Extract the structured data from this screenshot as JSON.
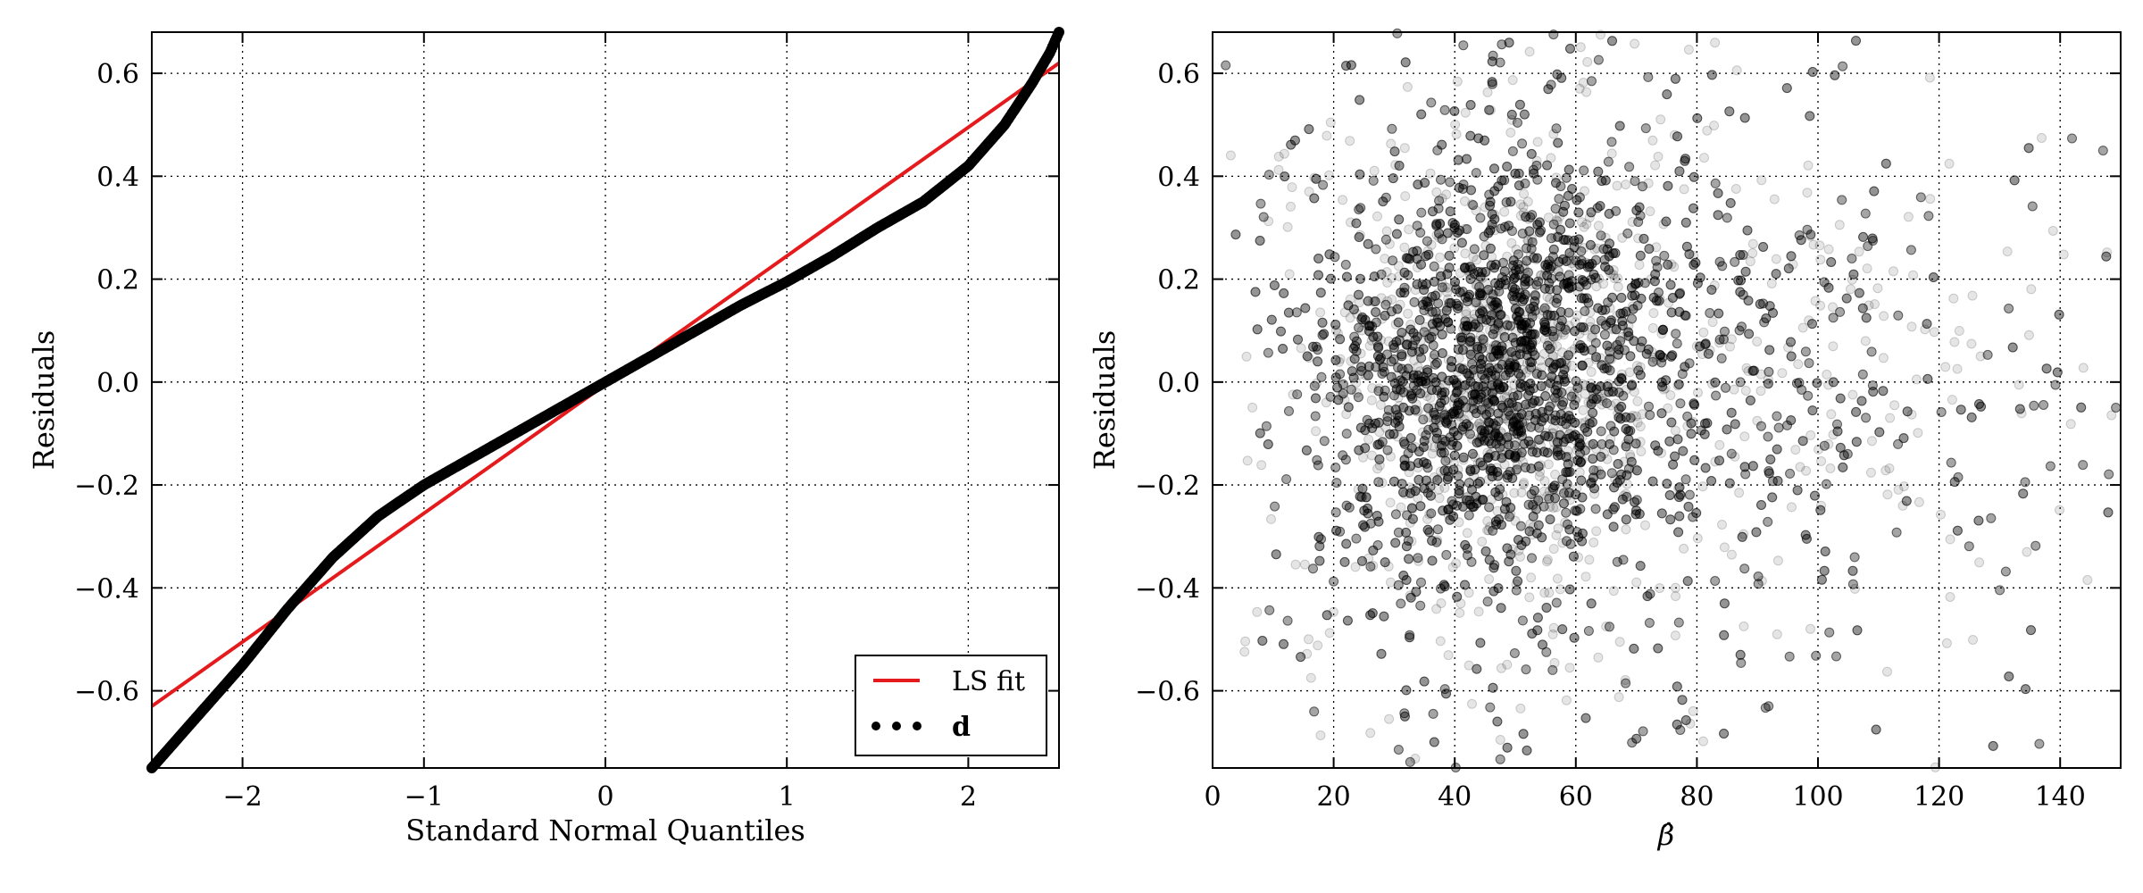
{
  "chart_data": [
    {
      "type": "line",
      "title": "",
      "xlabel": "Standard Normal Quantiles",
      "ylabel": "Residuals",
      "xlim": [
        -2.5,
        2.5
      ],
      "ylim": [
        -0.75,
        0.68
      ],
      "xticks": [
        -2,
        -1,
        0,
        1,
        2
      ],
      "xtick_labels": [
        "−2",
        "−1",
        "0",
        "1",
        "2"
      ],
      "yticks": [
        -0.6,
        -0.4,
        -0.2,
        0.0,
        0.2,
        0.4,
        0.6
      ],
      "ytick_labels": [
        "−0.6",
        "−0.4",
        "−0.2",
        "0.0",
        "0.2",
        "0.4",
        "0.6"
      ],
      "grid": true,
      "legend_position": "bottom-right",
      "series": [
        {
          "name": "LS fit",
          "style": "line",
          "color": "#e41a1c",
          "x": [
            -2.5,
            2.5
          ],
          "y": [
            -0.63,
            0.62
          ]
        },
        {
          "name": "d",
          "style": "points",
          "color": "#000000",
          "x": [
            -2.5,
            -2.25,
            -2.0,
            -1.75,
            -1.5,
            -1.25,
            -1.0,
            -0.75,
            -0.5,
            -0.25,
            0.0,
            0.25,
            0.5,
            0.75,
            1.0,
            1.25,
            1.5,
            1.75,
            2.0,
            2.2,
            2.35,
            2.45,
            2.5
          ],
          "y": [
            -0.75,
            -0.65,
            -0.55,
            -0.44,
            -0.34,
            -0.26,
            -0.2,
            -0.15,
            -0.1,
            -0.05,
            0.0,
            0.05,
            0.1,
            0.15,
            0.195,
            0.245,
            0.3,
            0.35,
            0.42,
            0.5,
            0.58,
            0.64,
            0.68
          ]
        }
      ]
    },
    {
      "type": "scatter",
      "title": "",
      "xlabel": "β̂",
      "ylabel": "Residuals",
      "xlim": [
        0,
        150
      ],
      "ylim": [
        -0.75,
        0.68
      ],
      "xticks": [
        0,
        20,
        40,
        60,
        80,
        100,
        120,
        140
      ],
      "xtick_labels": [
        "0",
        "20",
        "40",
        "60",
        "80",
        "100",
        "120",
        "140"
      ],
      "yticks": [
        -0.6,
        -0.4,
        -0.2,
        0.0,
        0.2,
        0.4,
        0.6
      ],
      "ytick_labels": [
        "−0.6",
        "−0.4",
        "−0.2",
        "0.0",
        "0.2",
        "0.4",
        "0.6"
      ],
      "grid": true,
      "point_color": "#000000",
      "point_alpha": 0.1,
      "point_cloud_summary": {
        "dense_core_x_range": [
          25,
          75
        ],
        "dense_core_y_range": [
          -0.25,
          0.35
        ],
        "peak_density_at": [
          45,
          0.05
        ]
      }
    }
  ]
}
